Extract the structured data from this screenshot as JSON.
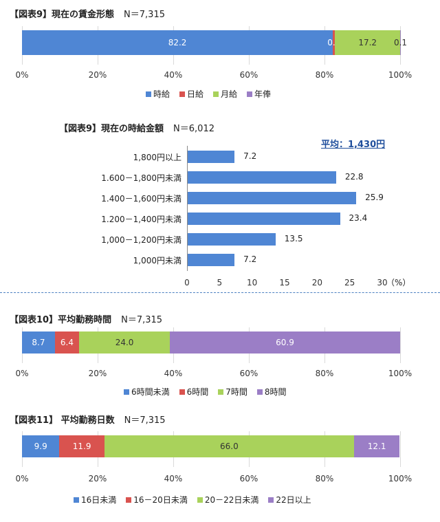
{
  "colors": {
    "blue": "#4f86d4",
    "red": "#d9534f",
    "green": "#a9d25b",
    "purple": "#9b7ec6",
    "grid": "#d9d9d9",
    "avg_text": "#1f4e9c"
  },
  "pct_ticks": [
    "0%",
    "20%",
    "40%",
    "60%",
    "80%",
    "100%"
  ],
  "chart_data": [
    {
      "type": "bar",
      "stacked": true,
      "orientation": "horizontal",
      "title": "【図表9】現在の賃金形態",
      "n_label": "N＝7,315",
      "xlim": [
        0,
        100
      ],
      "series": [
        {
          "name": "時給",
          "value": 82.2,
          "label": "82.2",
          "color": "blue"
        },
        {
          "name": "日給",
          "value": 0.6,
          "label": "0.6",
          "color": "red"
        },
        {
          "name": "月給",
          "value": 17.2,
          "label": "17.2",
          "color": "green"
        },
        {
          "name": "年俸",
          "value": 0.1,
          "label": "0.1",
          "color": "purple"
        }
      ]
    },
    {
      "type": "bar",
      "orientation": "horizontal",
      "title": "【図表9】現在の時給金額",
      "n_label": "N＝6,012",
      "average": "平均：1,430円",
      "unit": "（%）",
      "xlim": [
        0,
        30
      ],
      "xticks": [
        "0",
        "5",
        "10",
        "15",
        "20",
        "25",
        "30"
      ],
      "categories": [
        "1,800円以上",
        "1.600－1,800円未満",
        "1.400－1,600円未満",
        "1.200－1,400円未満",
        "1,000－1,200円未満",
        "1,000円未満"
      ],
      "values": [
        7.2,
        22.8,
        25.9,
        23.4,
        13.5,
        7.2
      ],
      "value_labels": [
        "7.2",
        "22.8",
        "25.9",
        "23.4",
        "13.5",
        "7.2"
      ]
    },
    {
      "type": "bar",
      "stacked": true,
      "orientation": "horizontal",
      "title": "【図表10】平均勤務時間",
      "n_label": "N＝7,315",
      "xlim": [
        0,
        100
      ],
      "series": [
        {
          "name": "6時間未満",
          "value": 8.7,
          "label": "8.7",
          "color": "blue"
        },
        {
          "name": "6時間",
          "value": 6.4,
          "label": "6.4",
          "color": "red"
        },
        {
          "name": "7時間",
          "value": 24.0,
          "label": "24.0",
          "color": "green"
        },
        {
          "name": "8時間",
          "value": 60.9,
          "label": "60.9",
          "color": "purple"
        }
      ]
    },
    {
      "type": "bar",
      "stacked": true,
      "orientation": "horizontal",
      "title": "【図表11】 平均勤務日数",
      "n_label": "N＝7,315",
      "xlim": [
        0,
        100
      ],
      "series": [
        {
          "name": "16日未満",
          "value": 9.9,
          "label": "9.9",
          "color": "blue"
        },
        {
          "name": "16－20日未満",
          "value": 11.9,
          "label": "11.9",
          "color": "red"
        },
        {
          "name": "20－22日未満",
          "value": 66.0,
          "label": "66.0",
          "color": "green"
        },
        {
          "name": "22日以上",
          "value": 12.1,
          "label": "12.1",
          "color": "purple"
        }
      ]
    }
  ]
}
